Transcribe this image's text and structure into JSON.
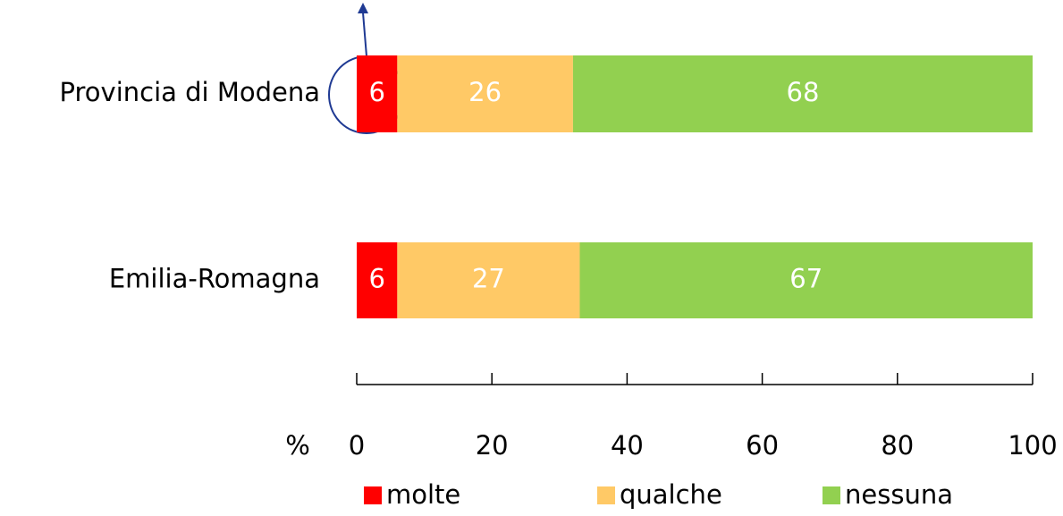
{
  "chart_data": {
    "type": "stacked_bar_horizontal",
    "categories": [
      "Provincia di Modena",
      "Emilia-Romagna"
    ],
    "series": [
      {
        "name": "molte",
        "color": "#FF0000",
        "values": [
          6,
          6
        ]
      },
      {
        "name": "qualche",
        "color": "#FFC966",
        "values": [
          26,
          27
        ]
      },
      {
        "name": "nessuna",
        "color": "#92D050",
        "values": [
          68,
          67
        ]
      }
    ],
    "x_axis_label": "%",
    "xlim": [
      0,
      100
    ],
    "xticks": [
      0,
      20,
      40,
      60,
      80,
      100
    ],
    "legend": "bottom"
  }
}
